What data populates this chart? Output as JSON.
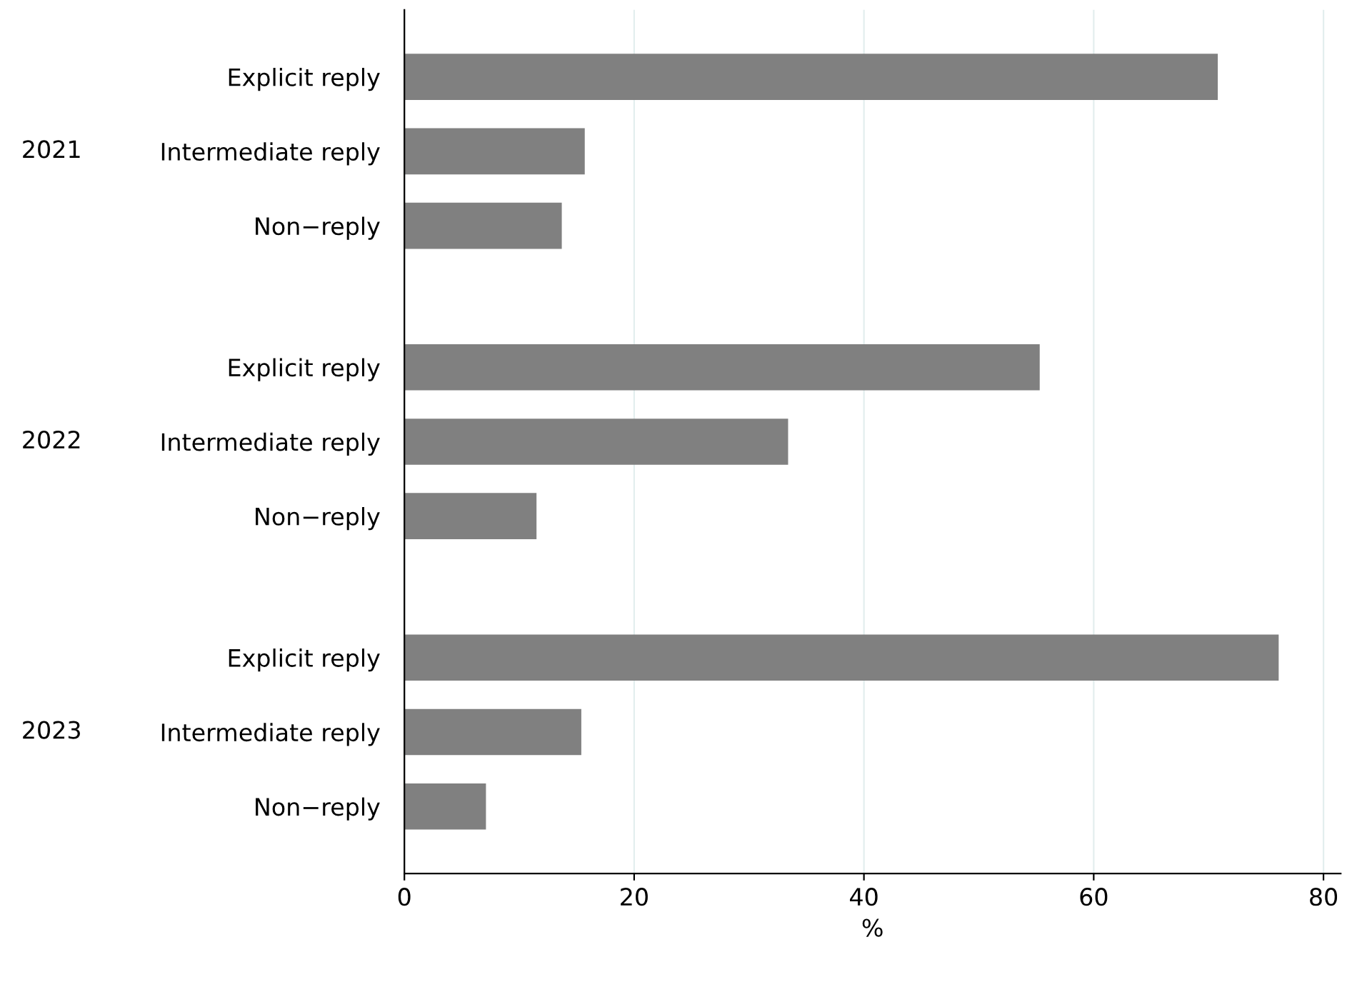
{
  "chart_data": {
    "type": "bar",
    "orientation": "horizontal",
    "xlabel": "%",
    "categories": [
      "Explicit reply",
      "Intermediate reply",
      "Non−reply",
      "Explicit reply",
      "Intermediate reply",
      "Non−reply",
      "Explicit reply",
      "Intermediate reply",
      "Non−reply"
    ],
    "values": [
      70.8,
      15.7,
      13.7,
      55.3,
      33.4,
      11.5,
      76.1,
      15.4,
      7.1
    ],
    "color": "#808080",
    "annotations": [
      "2021",
      "2022",
      "2023"
    ],
    "xlim": [
      0,
      81.5
    ],
    "xticks": [
      0,
      20,
      40,
      60,
      80
    ],
    "grid": "x"
  }
}
